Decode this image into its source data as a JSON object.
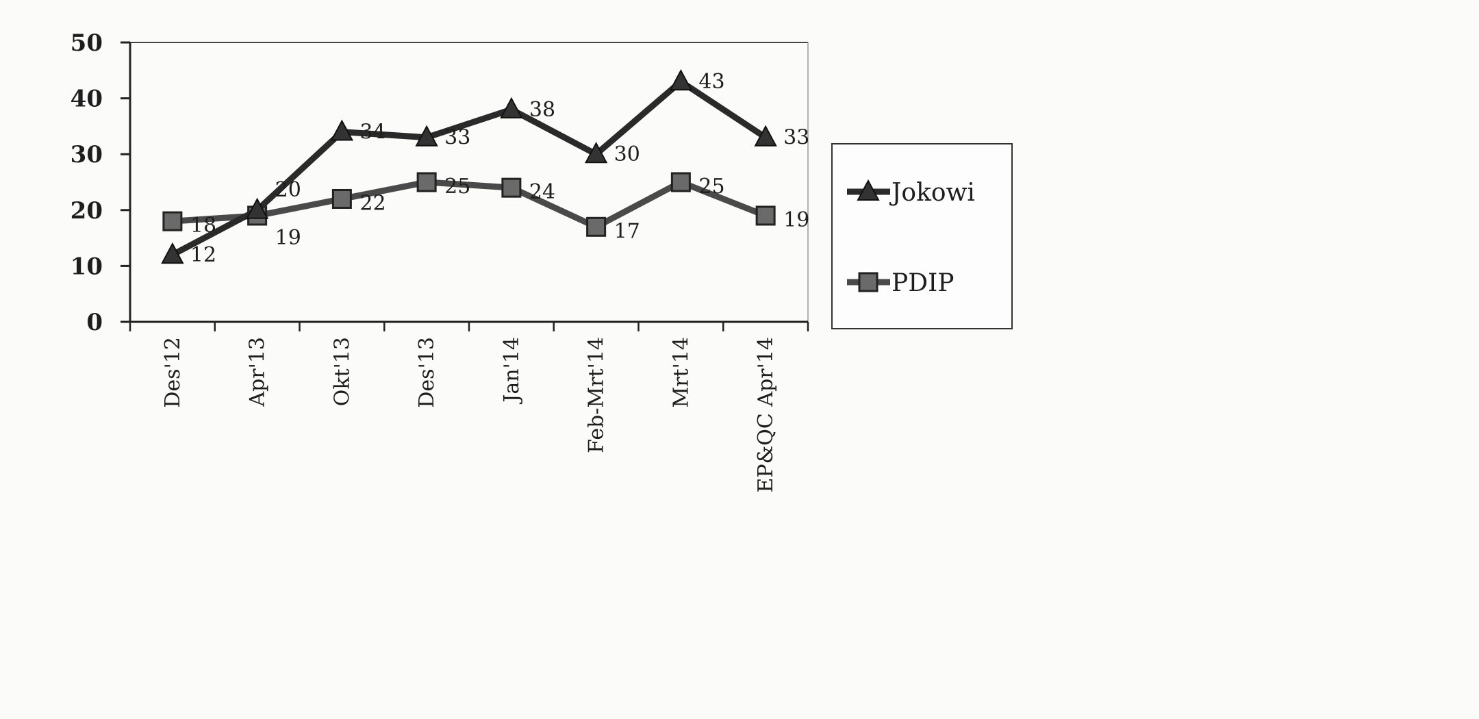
{
  "chart_data": {
    "type": "line",
    "title": "",
    "xlabel": "",
    "ylabel": "",
    "ylim": [
      0,
      50
    ],
    "yticks": [
      0,
      10,
      20,
      30,
      40,
      50
    ],
    "grid": false,
    "legend_placement": "right",
    "categories": [
      "Des'12",
      "Apr'13",
      "Okt'13",
      "Des'13",
      "Jan'14",
      "Feb-Mrt'14",
      "Mrt'14",
      "EP&QC Apr'14"
    ],
    "series": [
      {
        "name": "Jokowi",
        "marker": "triangle",
        "color": "#2a2a2a",
        "values": [
          12,
          20,
          34,
          33,
          38,
          30,
          43,
          33
        ]
      },
      {
        "name": "PDIP",
        "marker": "square",
        "color": "#4a4a4a",
        "values": [
          18,
          19,
          22,
          25,
          24,
          17,
          25,
          19
        ]
      }
    ]
  }
}
